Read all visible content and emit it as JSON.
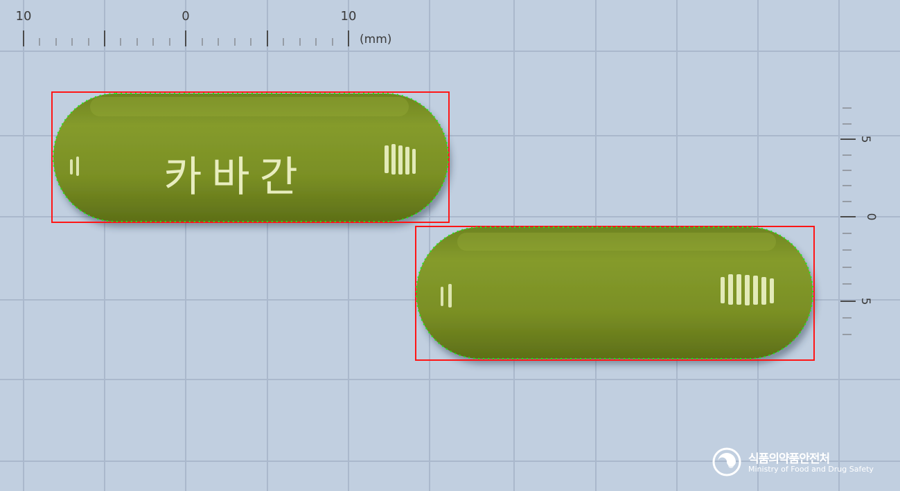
{
  "ruler_top": {
    "labels": [
      "10",
      "0",
      "10"
    ],
    "unit": "(mm)"
  },
  "ruler_right": {
    "labels": [
      "5",
      "0",
      "5"
    ]
  },
  "pills": [
    {
      "id": "front",
      "imprint": "카바간",
      "color": "#7b8d27"
    },
    {
      "id": "back",
      "imprint": "",
      "color": "#7b8d27"
    }
  ],
  "overlay": {
    "box_color": "#ff1515",
    "contour_color": "#19ee19"
  },
  "watermark": {
    "name_ko": "식품의약품안전처",
    "name_en": "Ministry of Food and Drug Safety"
  }
}
